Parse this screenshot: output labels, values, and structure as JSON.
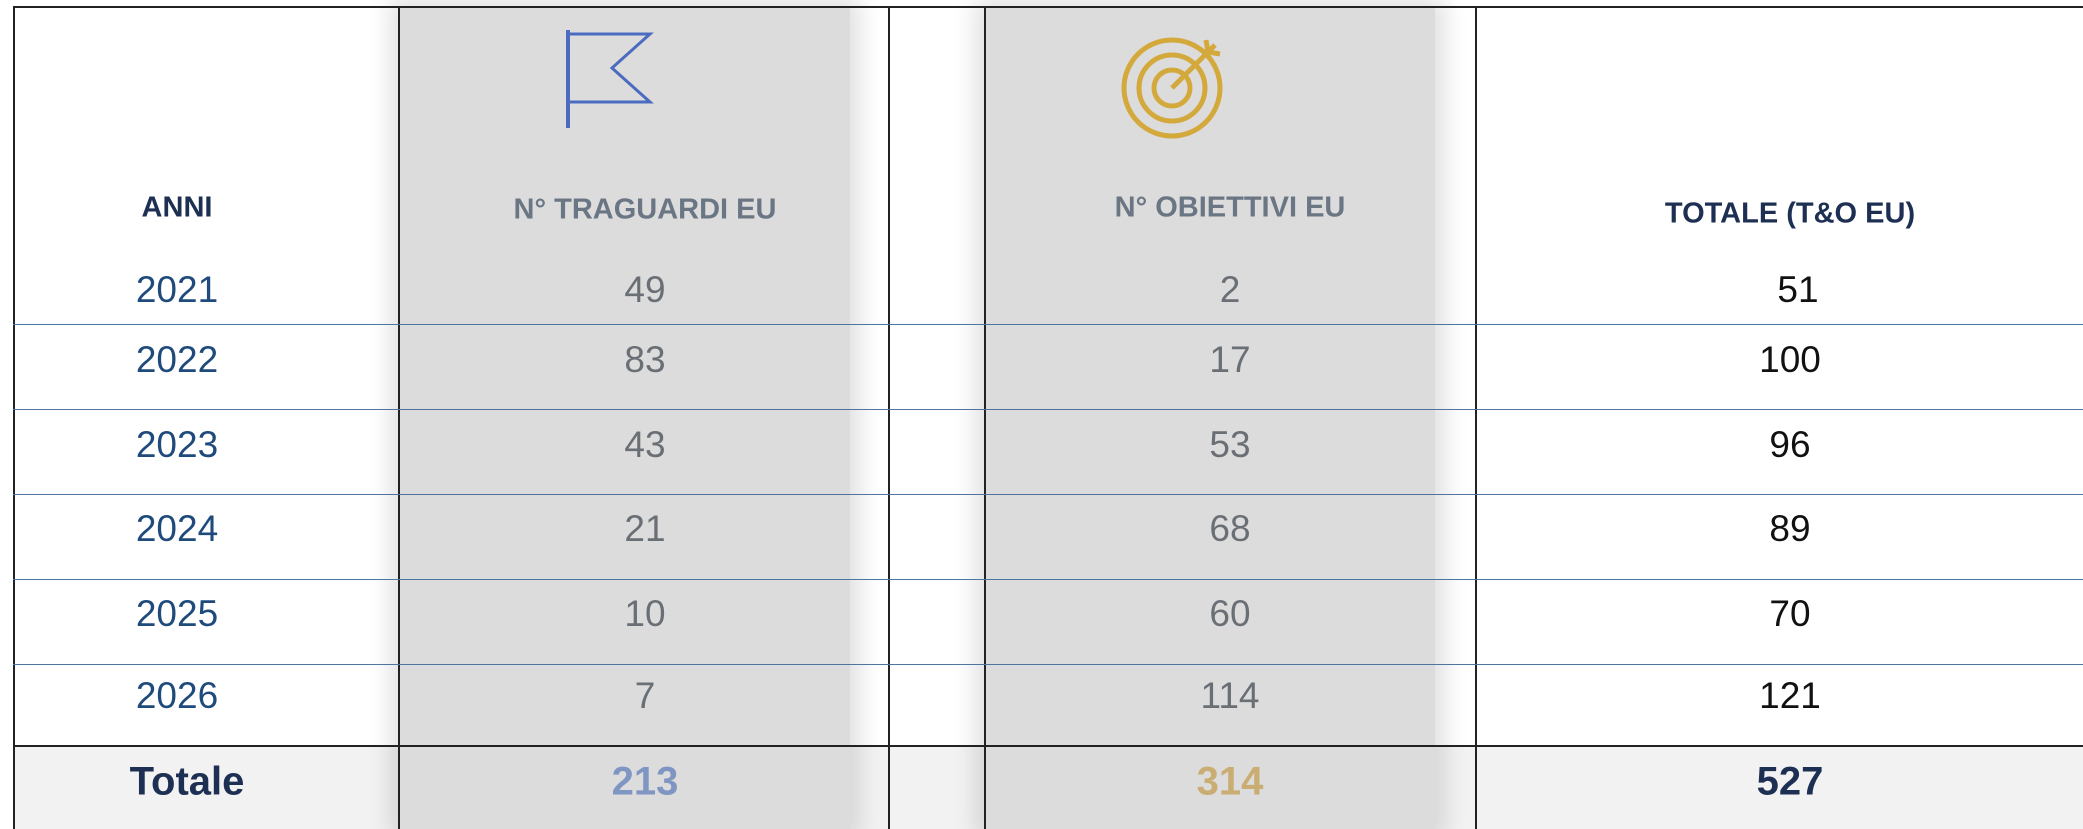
{
  "table": {
    "headers": [
      "ANNI",
      "N° TRAGUARDI EU",
      "N° OBIETTIVI EU",
      "TOTALE (T&O EU)"
    ],
    "rows": [
      [
        "2021",
        "49",
        "2",
        "51"
      ],
      [
        "2022",
        "83",
        "17",
        "100"
      ],
      [
        "2023",
        "43",
        "53",
        "96"
      ],
      [
        "2024",
        "21",
        "68",
        "89"
      ],
      [
        "2025",
        "10",
        "60",
        "70"
      ],
      [
        "2026",
        "7",
        "114",
        "121"
      ]
    ],
    "total": [
      "Totale",
      "213",
      "314",
      "527"
    ]
  }
}
